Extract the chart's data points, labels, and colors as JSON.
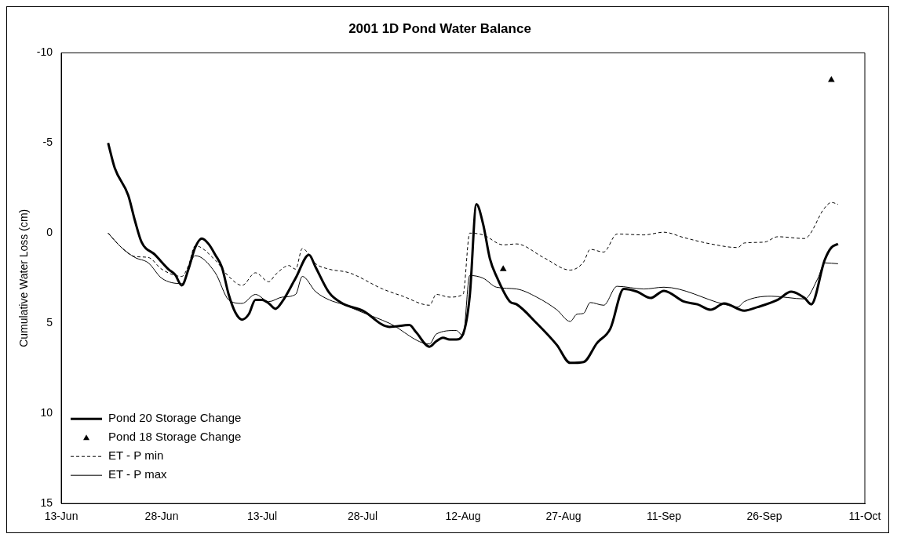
{
  "chart_data": {
    "type": "line",
    "title": "2001 1D Pond Water Balance",
    "ylabel": "Cumulative Water Loss (cm)",
    "xlim": [
      "2001-06-13",
      "2001-10-11"
    ],
    "xticks": [
      {
        "value": "2001-06-13",
        "label": "13-Jun"
      },
      {
        "value": "2001-06-28",
        "label": "28-Jun"
      },
      {
        "value": "2001-07-13",
        "label": "13-Jul"
      },
      {
        "value": "2001-07-28",
        "label": "28-Jul"
      },
      {
        "value": "2001-08-12",
        "label": "12-Aug"
      },
      {
        "value": "2001-08-27",
        "label": "27-Aug"
      },
      {
        "value": "2001-09-11",
        "label": "11-Sep"
      },
      {
        "value": "2001-09-26",
        "label": "26-Sep"
      },
      {
        "value": "2001-10-11",
        "label": "11-Oct"
      }
    ],
    "ylim": [
      15,
      -10
    ],
    "yticks": [
      -10,
      -5,
      0,
      5,
      10,
      15
    ],
    "grid": false,
    "legend": "bottom left",
    "series": [
      {
        "name": "Pond 20 Storage Change",
        "color": "#000000",
        "marker": "none",
        "line_style": "solid",
        "x": [
          "2001-06-20",
          "2001-06-21",
          "2001-06-23",
          "2001-06-24",
          "2001-06-25",
          "2001-06-27",
          "2001-06-29",
          "2001-06-30",
          "2001-07-01",
          "2001-07-02",
          "2001-07-03",
          "2001-07-04",
          "2001-07-05",
          "2001-07-06",
          "2001-07-07",
          "2001-07-08",
          "2001-07-09",
          "2001-07-10",
          "2001-07-11",
          "2001-07-12",
          "2001-07-13",
          "2001-07-14",
          "2001-07-15",
          "2001-07-16",
          "2001-07-18",
          "2001-07-20",
          "2001-07-21",
          "2001-07-23",
          "2001-07-25",
          "2001-07-28",
          "2001-08-01",
          "2001-08-04",
          "2001-08-05",
          "2001-08-07",
          "2001-08-08",
          "2001-08-09",
          "2001-08-10",
          "2001-08-11",
          "2001-08-12",
          "2001-08-13",
          "2001-08-14",
          "2001-08-15",
          "2001-08-16",
          "2001-08-17",
          "2001-08-19",
          "2001-08-20",
          "2001-08-23",
          "2001-08-26",
          "2001-08-28",
          "2001-08-30",
          "2001-09-01",
          "2001-09-03",
          "2001-09-05",
          "2001-09-07",
          "2001-09-09",
          "2001-09-11",
          "2001-09-14",
          "2001-09-16",
          "2001-09-18",
          "2001-09-20",
          "2001-09-23",
          "2001-09-25",
          "2001-09-28",
          "2001-09-30",
          "2001-10-02",
          "2001-10-03",
          "2001-10-05",
          "2001-10-06",
          "2001-10-07"
        ],
        "values": [
          -5,
          -3.6,
          -2.1,
          -0.7,
          0.5,
          1.2,
          2.0,
          2.3,
          2.9,
          2.0,
          0.8,
          0.3,
          0.6,
          1.2,
          1.9,
          3.4,
          4.4,
          4.8,
          4.5,
          3.7,
          3.7,
          3.9,
          4.2,
          3.8,
          2.5,
          1.2,
          1.9,
          3.3,
          3.9,
          4.3,
          5.2,
          5.1,
          5.5,
          6.3,
          6.0,
          5.8,
          5.9,
          5.9,
          5.6,
          3.5,
          -1.6,
          -0.5,
          1.4,
          2.4,
          3.8,
          3.95,
          5.0,
          6.2,
          7.2,
          7.15,
          6.1,
          5.3,
          3.1,
          3.25,
          3.6,
          3.2,
          3.8,
          3.95,
          4.25,
          3.9,
          4.3,
          4.1,
          3.7,
          3.25,
          3.6,
          3.95,
          1.5,
          0.8,
          0.6
        ]
      },
      {
        "name": "Pond 18 Storage Change",
        "type": "scatter",
        "color": "#000000",
        "marker": "triangle",
        "x": [
          "2001-08-18",
          "2001-10-06"
        ],
        "values": [
          2.0,
          -8.5
        ]
      },
      {
        "name": "ET - P min",
        "color": "#000000",
        "marker": "none",
        "line_style": "dashed",
        "x": [
          "2001-06-20",
          "2001-06-22",
          "2001-06-24",
          "2001-06-26",
          "2001-06-28",
          "2001-07-01",
          "2001-07-02",
          "2001-07-03",
          "2001-07-06",
          "2001-07-08",
          "2001-07-10",
          "2001-07-12",
          "2001-07-14",
          "2001-07-15",
          "2001-07-17",
          "2001-07-18",
          "2001-07-19",
          "2001-07-21",
          "2001-07-23",
          "2001-07-26",
          "2001-07-31",
          "2001-08-03",
          "2001-08-07",
          "2001-08-08",
          "2001-08-10",
          "2001-08-12",
          "2001-08-13",
          "2001-08-15",
          "2001-08-18",
          "2001-08-20",
          "2001-08-24",
          "2001-08-28",
          "2001-08-30",
          "2001-08-31",
          "2001-09-02",
          "2001-09-04",
          "2001-09-08",
          "2001-09-11",
          "2001-09-14",
          "2001-09-18",
          "2001-09-22",
          "2001-09-23",
          "2001-09-26",
          "2001-09-28",
          "2001-10-02",
          "2001-10-05",
          "2001-10-06",
          "2001-10-07"
        ],
        "values": [
          0,
          0.8,
          1.3,
          1.35,
          2.0,
          2.4,
          1.8,
          0.7,
          1.5,
          2.4,
          2.9,
          2.2,
          2.7,
          2.3,
          1.8,
          2.0,
          0.85,
          1.7,
          2.0,
          2.2,
          3.1,
          3.5,
          4.0,
          3.4,
          3.55,
          3.4,
          0,
          0.1,
          0.65,
          0.6,
          1.35,
          2.05,
          1.6,
          0.9,
          1.05,
          0.05,
          0.1,
          -0.05,
          0.25,
          0.6,
          0.8,
          0.55,
          0.5,
          0.2,
          0.3,
          -1.4,
          -1.7,
          -1.6
        ]
      },
      {
        "name": "ET - P max",
        "color": "#000000",
        "marker": "none",
        "line_style": "solid",
        "x": [
          "2001-06-20",
          "2001-06-22",
          "2001-06-24",
          "2001-06-26",
          "2001-06-28",
          "2001-07-01",
          "2001-07-03",
          "2001-07-06",
          "2001-07-08",
          "2001-07-10",
          "2001-07-12",
          "2001-07-14",
          "2001-07-16",
          "2001-07-18",
          "2001-07-19",
          "2001-07-21",
          "2001-07-23",
          "2001-07-25",
          "2001-07-28",
          "2001-08-01",
          "2001-08-07",
          "2001-08-08",
          "2001-08-11",
          "2001-08-12",
          "2001-08-13",
          "2001-08-15",
          "2001-08-17",
          "2001-08-20",
          "2001-08-23",
          "2001-08-26",
          "2001-08-28",
          "2001-08-29",
          "2001-08-30",
          "2001-08-31",
          "2001-09-02",
          "2001-09-04",
          "2001-09-08",
          "2001-09-11",
          "2001-09-20",
          "2001-09-22",
          "2001-09-23",
          "2001-09-27",
          "2001-10-02",
          "2001-10-04",
          "2001-10-05",
          "2001-10-07"
        ],
        "values": [
          0,
          0.8,
          1.35,
          1.65,
          2.5,
          2.8,
          1.25,
          2.2,
          3.7,
          3.9,
          3.4,
          3.8,
          3.55,
          3.4,
          2.4,
          3.25,
          3.7,
          3.95,
          4.4,
          5.0,
          6.15,
          5.6,
          5.4,
          5.7,
          2.35,
          2.5,
          3.0,
          3.1,
          3.55,
          4.25,
          4.9,
          4.5,
          4.45,
          3.85,
          4.0,
          2.95,
          3.1,
          3.0,
          3.95,
          4.1,
          3.8,
          3.5,
          3.65,
          2.5,
          1.65,
          1.7
        ]
      }
    ]
  }
}
